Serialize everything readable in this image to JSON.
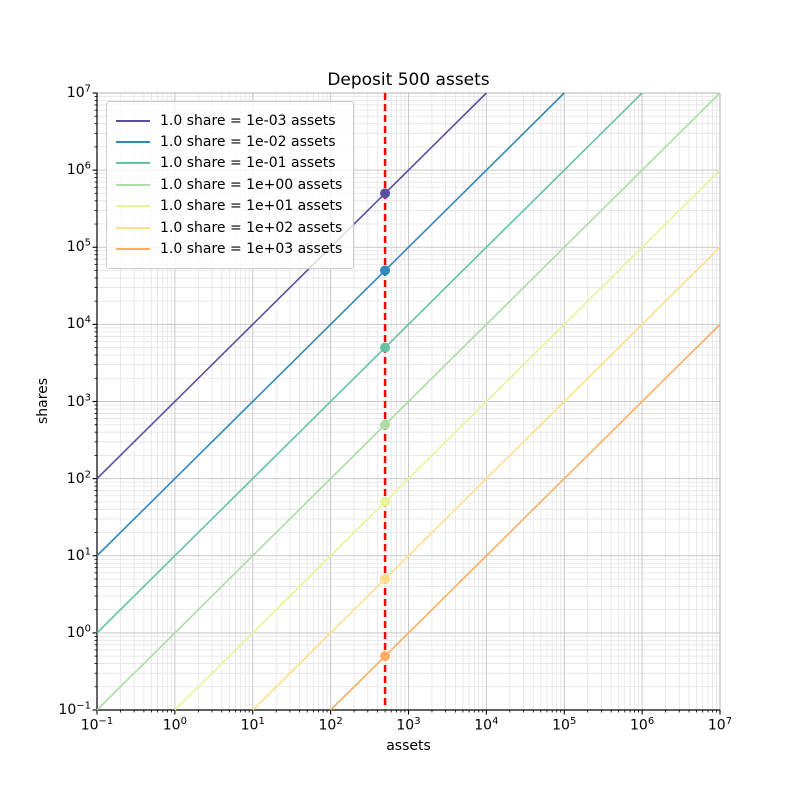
{
  "chart_data": {
    "type": "line",
    "title": "Deposit 500 assets",
    "xlabel": "assets",
    "ylabel": "shares",
    "x_scale": "log",
    "y_scale": "log",
    "xlim": [
      0.1,
      10000000
    ],
    "ylim": [
      0.1,
      10000000
    ],
    "x_tick_exponents": [
      -1,
      0,
      1,
      2,
      3,
      4,
      5,
      6,
      7
    ],
    "y_tick_exponents": [
      -1,
      0,
      1,
      2,
      3,
      4,
      5,
      6,
      7
    ],
    "grid": "major+minor",
    "legend_position": "upper-left",
    "deposit_assets": 500,
    "series": [
      {
        "label": "1.0 share = 1e-03 assets",
        "rate": 0.001,
        "color": "#5e4fa2",
        "point": {
          "assets": 500,
          "shares": 500000
        }
      },
      {
        "label": "1.0 share = 1e-02 assets",
        "rate": 0.01,
        "color": "#3288bd",
        "point": {
          "assets": 500,
          "shares": 50000
        }
      },
      {
        "label": "1.0 share = 1e-01 assets",
        "rate": 0.1,
        "color": "#66c2a5",
        "point": {
          "assets": 500,
          "shares": 5000
        }
      },
      {
        "label": "1.0 share = 1e+00 assets",
        "rate": 1.0,
        "color": "#abdda4",
        "point": {
          "assets": 500,
          "shares": 500
        }
      },
      {
        "label": "1.0 share = 1e+01 assets",
        "rate": 10.0,
        "color": "#e6f598",
        "point": {
          "assets": 500,
          "shares": 50
        }
      },
      {
        "label": "1.0 share = 1e+02 assets",
        "rate": 100.0,
        "color": "#fee08b",
        "point": {
          "assets": 500,
          "shares": 5
        }
      },
      {
        "label": "1.0 share = 1e+03 assets",
        "rate": 1000.0,
        "color": "#fdae61",
        "point": {
          "assets": 500,
          "shares": 0.5
        }
      }
    ],
    "vline": {
      "x": 500,
      "color": "#ff0000",
      "style": "dashed"
    },
    "style": {
      "background": "#ffffff",
      "grid_major_color": "#c9c9c9",
      "grid_minor_color": "#e4e4e4",
      "spine_dark_color": "#000000",
      "spine_light_color": "#b0b0b0",
      "tick_color": "#000000"
    }
  }
}
